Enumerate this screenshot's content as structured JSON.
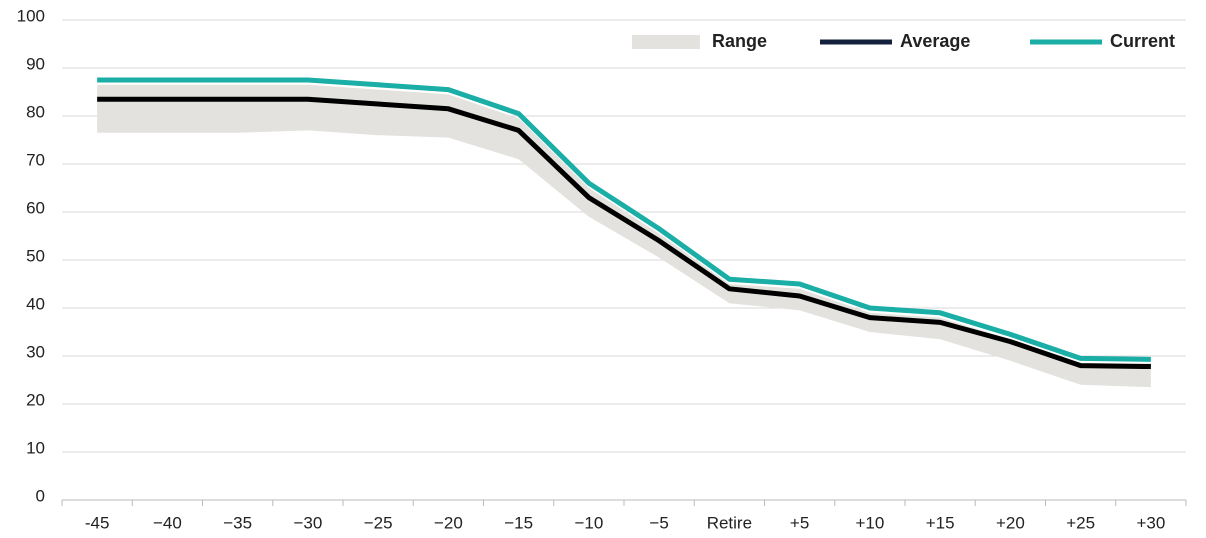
{
  "chart_data": {
    "type": "line",
    "categories": [
      "-45",
      "−40",
      "−35",
      "−30",
      "−25",
      "−20",
      "−15",
      "−10",
      "−5",
      "Retire",
      "+5",
      "+10",
      "+15",
      "+20",
      "+25",
      "+30"
    ],
    "series": [
      {
        "name": "Range",
        "color": "#e4e2de",
        "low": [
          76.5,
          76.5,
          76.5,
          77,
          76,
          75.5,
          71,
          59,
          50.5,
          41,
          39.5,
          35,
          33.5,
          29,
          24,
          23.5
        ],
        "high": [
          86.5,
          86.5,
          86.5,
          86.5,
          85.5,
          84.5,
          79.5,
          65,
          55.5,
          45,
          44,
          39,
          38,
          33.5,
          28.5,
          28.5
        ]
      },
      {
        "name": "Average",
        "color": "#14213d",
        "values": [
          83.5,
          83.5,
          83.5,
          83.5,
          82.5,
          81.5,
          77,
          63,
          54,
          44,
          42.5,
          38,
          37,
          33,
          28,
          27.8
        ]
      },
      {
        "name": "Current",
        "color": "#1aaea6",
        "values": [
          87.5,
          87.5,
          87.5,
          87.5,
          86.5,
          85.5,
          80.5,
          66,
          56.5,
          46,
          45,
          40,
          39,
          34.5,
          29.5,
          29.3
        ]
      }
    ],
    "ylim": [
      0,
      100
    ],
    "yticks": [
      0,
      10,
      20,
      30,
      40,
      50,
      60,
      70,
      80,
      90,
      100
    ],
    "grid": true,
    "legend": "top-right"
  }
}
